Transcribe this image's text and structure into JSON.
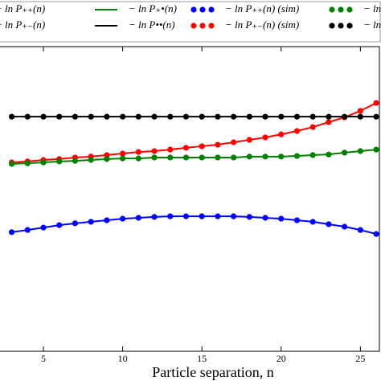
{
  "chart_data": {
    "type": "line",
    "xlabel": "Particle separation, n",
    "x": [
      3,
      4,
      5,
      6,
      7,
      8,
      9,
      10,
      11,
      12,
      13,
      14,
      15,
      16,
      17,
      18,
      19,
      20,
      21,
      22,
      23,
      24,
      25,
      26
    ],
    "xlim": [
      2.26,
      26.2
    ],
    "xticks": [
      5,
      10,
      15,
      20,
      25
    ],
    "ylim": [
      0,
      100
    ],
    "legend": "top",
    "series": [
      {
        "name": "− ln P₊₊(n)",
        "color": "#0000ff",
        "linestyle": "-",
        "values": [
          39.1,
          39.8,
          40.6,
          41.4,
          42.0,
          42.5,
          43.0,
          43.5,
          43.8,
          44.1,
          44.3,
          44.3,
          44.3,
          44.3,
          44.3,
          44.1,
          43.8,
          43.5,
          43.0,
          42.5,
          41.7,
          40.9,
          39.8,
          38.5
        ]
      },
      {
        "name": "− ln P₊₋(n)",
        "color": "#ff0000",
        "linestyle": "-",
        "values": [
          62.0,
          62.3,
          62.8,
          63.1,
          63.6,
          63.9,
          64.4,
          64.9,
          65.4,
          65.7,
          66.2,
          66.8,
          67.3,
          67.8,
          68.6,
          69.4,
          70.2,
          71.2,
          72.3,
          73.6,
          75.2,
          76.8,
          78.9,
          81.5
        ]
      },
      {
        "name": "− ln P₊•(n)",
        "color": "#008000",
        "linestyle": "-",
        "values": [
          61.5,
          61.7,
          62.0,
          62.3,
          62.5,
          62.8,
          63.1,
          63.3,
          63.3,
          63.6,
          63.6,
          63.6,
          63.6,
          63.6,
          63.6,
          63.9,
          63.9,
          63.9,
          64.1,
          64.4,
          64.6,
          65.2,
          65.7,
          66.2
        ]
      },
      {
        "name": "− ln P••(n)",
        "color": "#000000",
        "linestyle": "-",
        "values": [
          77,
          77,
          77,
          77,
          77,
          77,
          77,
          77,
          77,
          77,
          77,
          77,
          77,
          77,
          77,
          77,
          77,
          77,
          77,
          77,
          77,
          77,
          77,
          77
        ]
      },
      {
        "name": "− ln P₊₊(n) (sim)",
        "color": "#0000ff",
        "marker": "o",
        "values": [
          39.1,
          39.8,
          40.6,
          41.4,
          42.0,
          42.5,
          43.0,
          43.5,
          43.8,
          44.1,
          44.3,
          44.3,
          44.3,
          44.3,
          44.3,
          44.1,
          43.8,
          43.5,
          43.0,
          42.5,
          41.7,
          40.9,
          39.8,
          38.5
        ]
      },
      {
        "name": "− ln P₊₋(n) (sim)",
        "color": "#ff0000",
        "marker": "o",
        "values": [
          62.0,
          62.3,
          62.8,
          63.1,
          63.6,
          63.9,
          64.4,
          64.9,
          65.4,
          65.7,
          66.2,
          66.8,
          67.3,
          67.8,
          68.6,
          69.4,
          70.2,
          71.2,
          72.3,
          73.6,
          75.2,
          76.8,
          78.9,
          81.5
        ]
      },
      {
        "name": "− ln P₊•(n) (sim)",
        "color": "#008000",
        "marker": "o",
        "values": [
          61.5,
          61.7,
          62.0,
          62.3,
          62.5,
          62.8,
          63.1,
          63.3,
          63.3,
          63.6,
          63.6,
          63.6,
          63.6,
          63.6,
          63.6,
          63.9,
          63.9,
          63.9,
          64.1,
          64.4,
          64.6,
          65.2,
          65.7,
          66.2
        ]
      },
      {
        "name": "− ln P••(n) (sim)",
        "color": "#000000",
        "marker": "o",
        "values": [
          77,
          77,
          77,
          77,
          77,
          77,
          77,
          77,
          77,
          77,
          77,
          77,
          77,
          77,
          77,
          77,
          77,
          77,
          77,
          77,
          77,
          77,
          77,
          77
        ]
      }
    ]
  }
}
